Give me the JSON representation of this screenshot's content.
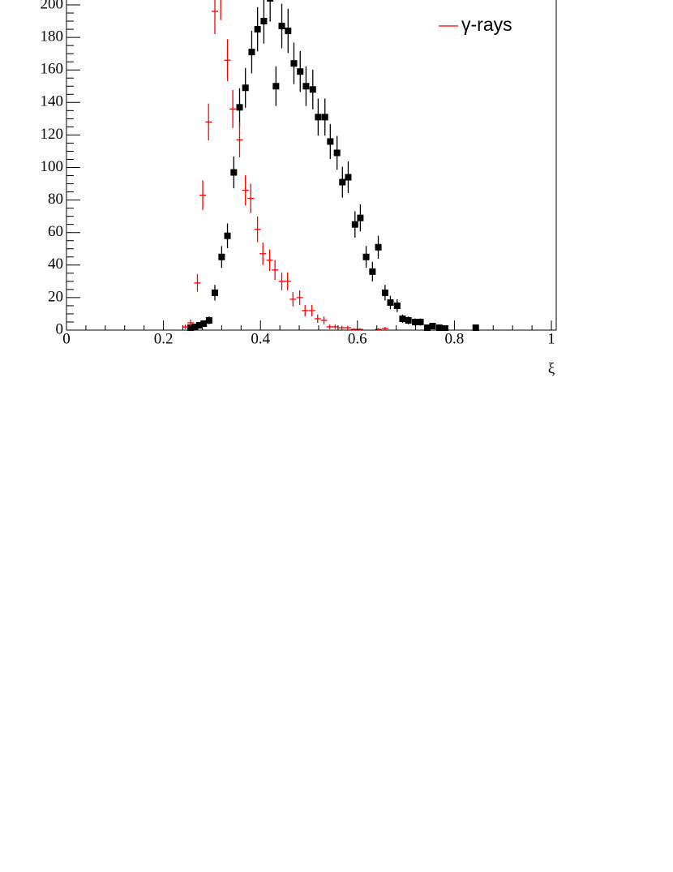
{
  "chart_data": {
    "type": "scatter",
    "x_label": "ξ",
    "xlim": [
      0,
      1.01
    ],
    "ylim": [
      0,
      203
    ],
    "xticks": [
      0,
      0.2,
      0.4,
      0.6,
      0.8,
      1
    ],
    "yticks": [
      0,
      20,
      40,
      60,
      80,
      100,
      120,
      140,
      160,
      180,
      200
    ],
    "series": [
      {
        "color": "#000000",
        "marker": "square",
        "x": [
          0.256,
          0.265,
          0.274,
          0.283,
          0.294,
          0.306,
          0.32,
          0.332,
          0.345,
          0.357,
          0.369,
          0.382,
          0.394,
          0.407,
          0.42,
          0.432,
          0.444,
          0.457,
          0.469,
          0.482,
          0.494,
          0.508,
          0.519,
          0.533,
          0.544,
          0.558,
          0.569,
          0.581,
          0.595,
          0.606,
          0.618,
          0.631,
          0.643,
          0.657,
          0.668,
          0.682,
          0.693,
          0.705,
          0.719,
          0.73,
          0.744,
          0.755,
          0.769,
          0.781,
          0.844
        ],
        "values": [
          1.5,
          2,
          3,
          4,
          6,
          23,
          45,
          58,
          97,
          137,
          149,
          171,
          185,
          190,
          204,
          150,
          187,
          184,
          164,
          159,
          150,
          148,
          131,
          131,
          116,
          109,
          91,
          94,
          65,
          69,
          45,
          36,
          51,
          23,
          17,
          15,
          7,
          6,
          5,
          5,
          1.5,
          2.5,
          1.5,
          1,
          1.5
        ],
        "errors": [
          1.2,
          1.4,
          1.7,
          2,
          2.4,
          4.8,
          6.7,
          7.6,
          9.8,
          11.7,
          12.2,
          13.1,
          13.6,
          13.8,
          14.3,
          12.2,
          13.7,
          13.6,
          12.8,
          12.6,
          12.2,
          12.2,
          11.4,
          11.4,
          10.8,
          10.4,
          9.5,
          9.7,
          8.1,
          8.3,
          6.7,
          6,
          7.1,
          4.8,
          4.1,
          3.9,
          2.6,
          2.4,
          2.2,
          2.2,
          1.2,
          1.6,
          1.2,
          1,
          1.2
        ]
      },
      {
        "name": "γ-rays",
        "color": "#ff0000",
        "marker": "cross",
        "x": [
          0.245,
          0.256,
          0.27,
          0.281,
          0.293,
          0.306,
          0.318,
          0.332,
          0.343,
          0.357,
          0.369,
          0.38,
          0.394,
          0.405,
          0.419,
          0.43,
          0.444,
          0.456,
          0.467,
          0.481,
          0.492,
          0.506,
          0.518,
          0.531,
          0.543,
          0.554,
          0.568,
          0.58,
          0.593,
          0.605,
          0.643,
          0.657
        ],
        "values": [
          2,
          4.5,
          29,
          83,
          128,
          196,
          205,
          166,
          136,
          117,
          86,
          81,
          62,
          47,
          43,
          37,
          30,
          30,
          19,
          20,
          12,
          12,
          7,
          6,
          2,
          2,
          1.5,
          1.5,
          0.5,
          0.5,
          0.5,
          1
        ],
        "errors": [
          1.4,
          2.1,
          5.4,
          9.1,
          11.3,
          14,
          14.3,
          12.9,
          11.7,
          10.8,
          9.3,
          9,
          7.9,
          6.9,
          6.6,
          6.1,
          5.5,
          5.5,
          4.4,
          4.5,
          3.5,
          3.5,
          2.6,
          2.4,
          1.4,
          1.4,
          1.2,
          1.2,
          0.7,
          0.7,
          0.7,
          1
        ]
      }
    ]
  }
}
